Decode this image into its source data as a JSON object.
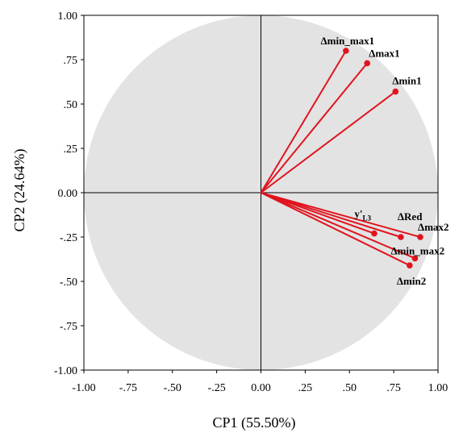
{
  "chart_data": {
    "type": "scatter",
    "xlabel": "CP1 (55.50%)",
    "ylabel": "CP2 (24.64%)",
    "xlim": [
      -1.0,
      1.0
    ],
    "ylim": [
      -1.0,
      1.0
    ],
    "xticks": [
      "-1.00",
      "-.75",
      "-.50",
      "-.25",
      "0.00",
      ".25",
      ".50",
      ".75",
      "1.00"
    ],
    "yticks": [
      "1.00",
      ".75",
      ".50",
      ".25",
      "0.00",
      "-.25",
      "-.50",
      "-.75",
      "-1.00"
    ],
    "circle_fill": "#e3e3e3",
    "vector_color": "#e0141e",
    "points": [
      {
        "label": "Δmin_max1",
        "x": 0.48,
        "y": 0.8
      },
      {
        "label": "Δmax1",
        "x": 0.6,
        "y": 0.73
      },
      {
        "label": "Δmin1",
        "x": 0.76,
        "y": 0.57
      },
      {
        "label": "y'",
        "subscript": "L3",
        "x": 0.64,
        "y": -0.23
      },
      {
        "label": "ΔRed",
        "x": 0.79,
        "y": -0.25
      },
      {
        "label": "Δmax2",
        "x": 0.9,
        "y": -0.25
      },
      {
        "label": "Δmin_max2",
        "x": 0.87,
        "y": -0.37
      },
      {
        "label": "Δmin2",
        "x": 0.84,
        "y": -0.41
      }
    ]
  }
}
